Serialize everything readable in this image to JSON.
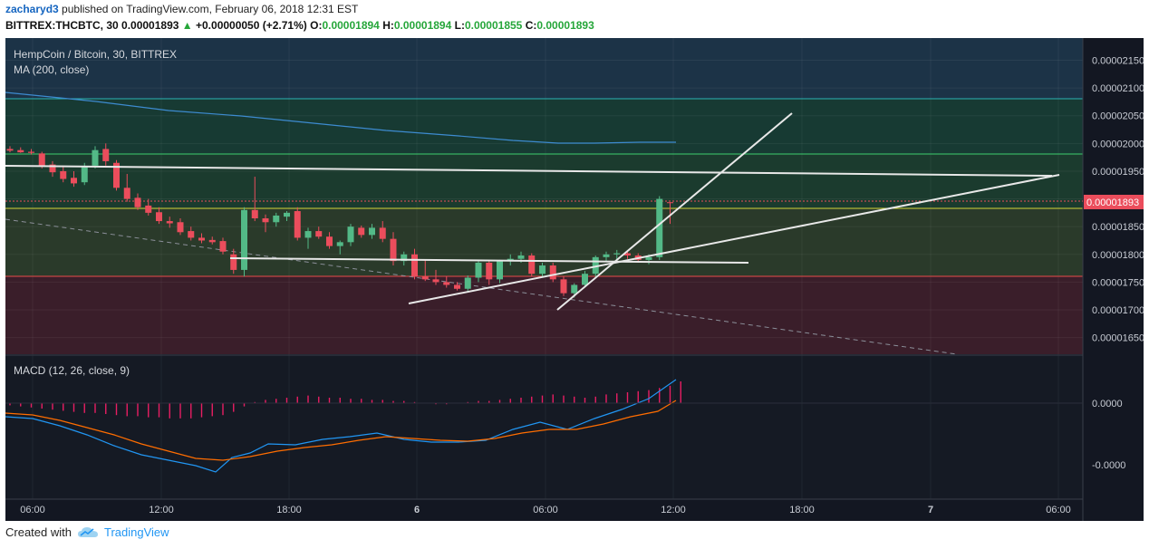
{
  "header": {
    "user": "zacharyd3",
    "published_text": "published on TradingView.com, February 06, 2018 12:31 EST"
  },
  "ticker_line": {
    "symbol": "BITTREX:THCBTC, 30",
    "last": "0.00001893",
    "change_arrow": "▲",
    "change": "+0.00000050 (+2.71%)",
    "o_label": "O:",
    "o": "0.00001894",
    "h_label": "H:",
    "h": "0.00001894",
    "l_label": "L:",
    "l": "0.00001855",
    "c_label": "C:",
    "c": "0.00001893"
  },
  "price_pane": {
    "title": "HempCoin / Bitcoin, 30, BITTREX",
    "indicator": "MA (200, close)",
    "y_ticks": [
      "0.00002150",
      "0.00002100",
      "0.00002050",
      "0.00002000",
      "0.00001950",
      "0.00001900",
      "0.00001850",
      "0.00001800",
      "0.00001750",
      "0.00001700",
      "0.00001650"
    ],
    "last_price_label": "0.00001893"
  },
  "macd_pane": {
    "title": "MACD (12, 26, close, 9)",
    "y_ticks": [
      "0.0000",
      "-0.0000"
    ]
  },
  "x_axis": {
    "ticks": [
      "06:00",
      "12:00",
      "18:00",
      "6",
      "06:00",
      "12:00",
      "18:00",
      "7",
      "06:00"
    ]
  },
  "footer": {
    "created_with": "Created with",
    "brand": "TradingView"
  },
  "colors": {
    "up": "#53b987",
    "down": "#eb4d5c",
    "ma": "#3d8bd0",
    "macd_line": "#2196f3",
    "signal_line": "#ff6d00",
    "histogram": "#e91e63",
    "bg": "#1b2633"
  },
  "chart_data": {
    "type": "candlestick",
    "ylim": [
      1.62e-05,
      2.19e-05
    ],
    "candles": [
      [
        1.99e-05,
        1.995e-05,
        1.984e-05,
        1.987e-05
      ],
      [
        1.988e-05,
        1.993e-05,
        1.983e-05,
        1.984e-05
      ],
      [
        1.985e-05,
        1.99e-05,
        1.98e-05,
        1.983e-05
      ],
      [
        1.982e-05,
        1.985e-05,
        1.955e-05,
        1.96e-05
      ],
      [
        1.962e-05,
        1.968e-05,
        1.94e-05,
        1.948e-05
      ],
      [
        1.95e-05,
        1.96e-05,
        1.93e-05,
        1.936e-05
      ],
      [
        1.938e-05,
        1.95e-05,
        1.922e-05,
        1.928e-05
      ],
      [
        1.93e-05,
        1.965e-05,
        1.925e-05,
        1.958e-05
      ],
      [
        1.96e-05,
        1.995e-05,
        1.955e-05,
        1.988e-05
      ],
      [
        1.99e-05,
        2e-05,
        1.96e-05,
        1.968e-05
      ],
      [
        1.965e-05,
        1.97e-05,
        1.915e-05,
        1.92e-05
      ],
      [
        1.92e-05,
        1.945e-05,
        1.895e-05,
        1.9e-05
      ],
      [
        1.902e-05,
        1.91e-05,
        1.88e-05,
        1.885e-05
      ],
      [
        1.888e-05,
        1.9e-05,
        1.87e-05,
        1.875e-05
      ],
      [
        1.876e-05,
        1.885e-05,
        1.855e-05,
        1.86e-05
      ],
      [
        1.86e-05,
        1.868e-05,
        1.848e-05,
        1.856e-05
      ],
      [
        1.858e-05,
        1.865e-05,
        1.835e-05,
        1.84e-05
      ],
      [
        1.842e-05,
        1.85e-05,
        1.825e-05,
        1.83e-05
      ],
      [
        1.83e-05,
        1.838e-05,
        1.82e-05,
        1.825e-05
      ],
      [
        1.826e-05,
        1.832e-05,
        1.818e-05,
        1.822e-05
      ],
      [
        1.824e-05,
        1.83e-05,
        1.8e-05,
        1.805e-05
      ],
      [
        1.8e-05,
        1.81e-05,
        1.765e-05,
        1.772e-05
      ],
      [
        1.772e-05,
        1.885e-05,
        1.76e-05,
        1.88e-05
      ],
      [
        1.88e-05,
        1.94e-05,
        1.86e-05,
        1.865e-05
      ],
      [
        1.865e-05,
        1.872e-05,
        1.84e-05,
        1.858e-05
      ],
      [
        1.858e-05,
        1.875e-05,
        1.85e-05,
        1.87e-05
      ],
      [
        1.868e-05,
        1.878e-05,
        1.86e-05,
        1.875e-05
      ],
      [
        1.878e-05,
        1.885e-05,
        1.825e-05,
        1.83e-05
      ],
      [
        1.83e-05,
        1.848e-05,
        1.81e-05,
        1.842e-05
      ],
      [
        1.842e-05,
        1.85e-05,
        1.828e-05,
        1.832e-05
      ],
      [
        1.832e-05,
        1.84e-05,
        1.81e-05,
        1.815e-05
      ],
      [
        1.815e-05,
        1.825e-05,
        1.8e-05,
        1.822e-05
      ],
      [
        1.822e-05,
        1.855e-05,
        1.815e-05,
        1.85e-05
      ],
      [
        1.848e-05,
        1.852e-05,
        1.83e-05,
        1.835e-05
      ],
      [
        1.835e-05,
        1.855e-05,
        1.828e-05,
        1.848e-05
      ],
      [
        1.848e-05,
        1.86e-05,
        1.822e-05,
        1.828e-05
      ],
      [
        1.828e-05,
        1.84e-05,
        1.78e-05,
        1.788e-05
      ],
      [
        1.788e-05,
        1.805e-05,
        1.78e-05,
        1.8e-05
      ],
      [
        1.8e-05,
        1.81e-05,
        1.755e-05,
        1.76e-05
      ],
      [
        1.76e-05,
        1.79e-05,
        1.752e-05,
        1.755e-05
      ],
      [
        1.755e-05,
        1.772e-05,
        1.745e-05,
        1.75e-05
      ],
      [
        1.75e-05,
        1.76e-05,
        1.74e-05,
        1.745e-05
      ],
      [
        1.745e-05,
        1.75e-05,
        1.735e-05,
        1.738e-05
      ],
      [
        1.738e-05,
        1.762e-05,
        1.732e-05,
        1.758e-05
      ],
      [
        1.758e-05,
        1.79e-05,
        1.75e-05,
        1.785e-05
      ],
      [
        1.785e-05,
        1.79e-05,
        1.745e-05,
        1.755e-05
      ],
      [
        1.755e-05,
        1.79e-05,
        1.748e-05,
        1.788e-05
      ],
      [
        1.788e-05,
        1.8e-05,
        1.78e-05,
        1.792e-05
      ],
      [
        1.792e-05,
        1.805e-05,
        1.785e-05,
        1.798e-05
      ],
      [
        1.798e-05,
        1.802e-05,
        1.76e-05,
        1.765e-05
      ],
      [
        1.765e-05,
        1.785e-05,
        1.76e-05,
        1.78e-05
      ],
      [
        1.78e-05,
        1.785e-05,
        1.75e-05,
        1.755e-05
      ],
      [
        1.755e-05,
        1.76e-05,
        1.725e-05,
        1.73e-05
      ],
      [
        1.73e-05,
        1.748e-05,
        1.722e-05,
        1.745e-05
      ],
      [
        1.745e-05,
        1.77e-05,
        1.74e-05,
        1.765e-05
      ],
      [
        1.765e-05,
        1.798e-05,
        1.76e-05,
        1.795e-05
      ],
      [
        1.795e-05,
        1.805e-05,
        1.788e-05,
        1.8e-05
      ],
      [
        1.8e-05,
        1.808e-05,
        1.79e-05,
        1.802e-05
      ],
      [
        1.802e-05,
        1.806e-05,
        1.792e-05,
        1.798e-05
      ],
      [
        1.798e-05,
        1.802e-05,
        1.785e-05,
        1.79e-05
      ],
      [
        1.79e-05,
        1.8e-05,
        1.782e-05,
        1.795e-05
      ],
      [
        1.795e-05,
        1.905e-05,
        1.79e-05,
        1.9e-05
      ],
      [
        1.894e-05,
        1.894e-05,
        1.855e-05,
        1.893e-05
      ]
    ]
  }
}
